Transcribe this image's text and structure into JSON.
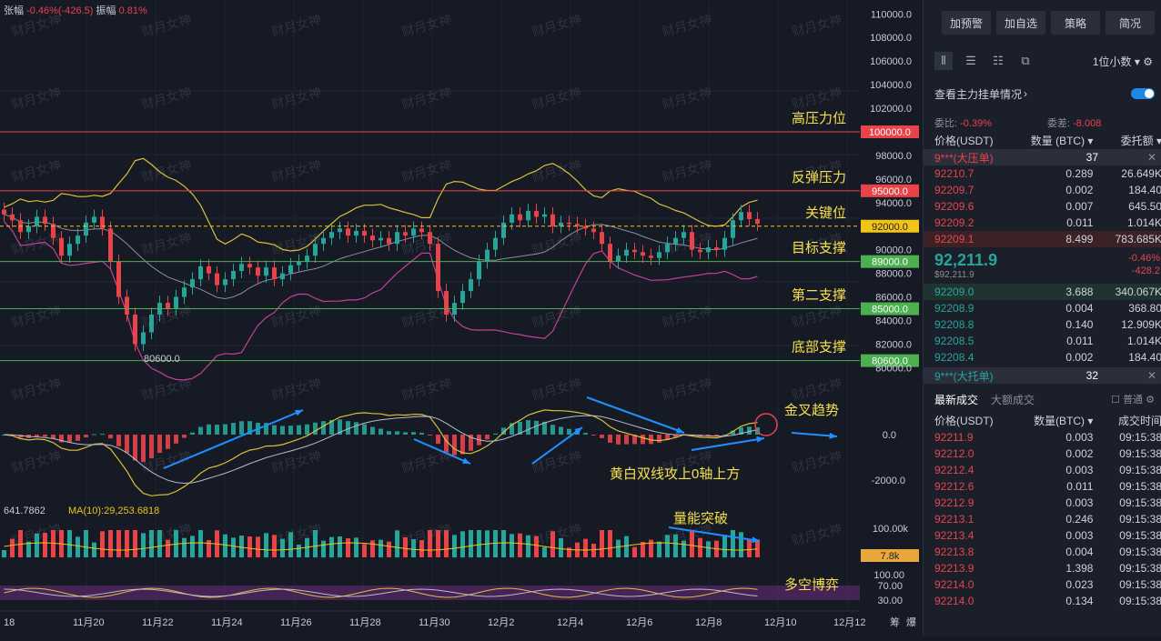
{
  "top_info": {
    "amp_label": "张幅",
    "amp_value": "-0.46%(-426.5)",
    "range_label": "振幅",
    "range_value": "0.81%"
  },
  "watermark": "财月女神",
  "chart_data": {
    "type": "candlestick",
    "price_axis_ticks": [
      "110000.0",
      "108000.0",
      "106000.0",
      "104000.0",
      "102000.0",
      "100000.0",
      "98000.0",
      "96000.0",
      "94000.0",
      "92000.0",
      "90000.0",
      "88000.0",
      "86000.0",
      "84000.0",
      "82000.0",
      "80000.0"
    ],
    "x_ticks": [
      "18",
      "11月20",
      "11月22",
      "11月24",
      "11月26",
      "11月28",
      "11月30",
      "12月2",
      "12月4",
      "12月6",
      "12月8",
      "12月10",
      "12月12"
    ],
    "levels": [
      {
        "price": 100000,
        "price_label": "100000.0",
        "name": "高压力位",
        "color": "#e9434a"
      },
      {
        "price": 95000,
        "price_label": "95000.0",
        "name": "反弹压力",
        "color": "#e9434a"
      },
      {
        "price": 92000,
        "price_label": "92000.0",
        "name": "关键位",
        "color": "#f0c419"
      },
      {
        "price": 89000,
        "price_label": "89000.0",
        "name": "目标支撑",
        "color": "#4caf50"
      },
      {
        "price": 85000,
        "price_label": "85000.0",
        "name": "第二支撑",
        "color": "#4caf50"
      },
      {
        "price": 80600,
        "price_label": "80600.0",
        "name": "底部支撑",
        "color": "#4caf50"
      }
    ],
    "low_marker": "80600.0",
    "candles_close": [
      93000,
      92500,
      91500,
      92000,
      92800,
      92200,
      91000,
      89500,
      90500,
      91200,
      92300,
      92800,
      91800,
      89000,
      86000,
      84500,
      82000,
      83000,
      84500,
      85500,
      85000,
      86000,
      86800,
      87500,
      88600,
      88000,
      87000,
      87500,
      88200,
      88800,
      88500,
      87800,
      88500,
      87500,
      88000,
      88700,
      89000,
      89500,
      90500,
      91000,
      91500,
      91800,
      91200,
      91600,
      91200,
      90800,
      91000,
      90500,
      91500,
      91200,
      91800,
      91500,
      90500,
      86500,
      84500,
      85500,
      86500,
      87500,
      89000,
      90000,
      91000,
      92300,
      93000,
      92500,
      93300,
      92800,
      93000,
      92000,
      92300,
      92200,
      92000,
      91800,
      91500,
      90500,
      89000,
      89500,
      90000,
      89800,
      89500,
      89300,
      89800,
      90500,
      91000,
      91500,
      90000,
      89800,
      90200,
      90000,
      91000,
      92500,
      93200,
      92600,
      92200
    ],
    "macd": {
      "axis_ticks": [
        "0.0",
        "-2000.0"
      ],
      "annotation": "金叉趋势",
      "note": "黄白双线攻上0轴上方"
    },
    "volume": {
      "ma_prefix": "641.7862",
      "ma10": "MA(10):29,253.6818",
      "axis_ticks": [
        "100.00k"
      ],
      "current": "7.8k",
      "annotation": "量能突破"
    },
    "osc": {
      "axis_ticks": [
        "100.00",
        "70.00",
        "30.00"
      ],
      "annotation": "多空博弈"
    },
    "bottom_right": [
      "筹",
      "爆"
    ]
  },
  "panel": {
    "buttons": [
      "加预警",
      "加自选",
      "策略",
      "简况"
    ],
    "precision": "1位小数",
    "view_orders": "查看主力挂单情况",
    "wei_bi": {
      "label": "委比:",
      "value": "-0.39%"
    },
    "wei_cha": {
      "label": "委差:",
      "value": "-8.008"
    },
    "headers": [
      "价格(USDT)",
      "数量 (BTC)",
      "委托额"
    ],
    "big_sell": {
      "label": "9***(大压单)",
      "count": "37"
    },
    "asks": [
      {
        "price": "92210.7",
        "qty": "0.289",
        "amt": "26.649K"
      },
      {
        "price": "92209.7",
        "qty": "0.002",
        "amt": "184.40"
      },
      {
        "price": "92209.6",
        "qty": "0.007",
        "amt": "645.50"
      },
      {
        "price": "92209.2",
        "qty": "0.011",
        "amt": "1.014K"
      },
      {
        "price": "92209.1",
        "qty": "8.499",
        "amt": "783.685K"
      }
    ],
    "last_price": "92,211.9",
    "last_sub": "$92,211.9",
    "last_change": "-0.46%",
    "last_change_abs": "-428.2",
    "bids": [
      {
        "price": "92209.0",
        "qty": "3.688",
        "amt": "340.067K"
      },
      {
        "price": "92208.9",
        "qty": "0.004",
        "amt": "368.80"
      },
      {
        "price": "92208.8",
        "qty": "0.140",
        "amt": "12.909K"
      },
      {
        "price": "92208.5",
        "qty": "0.011",
        "amt": "1.014K"
      },
      {
        "price": "92208.4",
        "qty": "0.002",
        "amt": "184.40"
      }
    ],
    "big_buy": {
      "label": "9***(大托单)",
      "count": "32"
    },
    "trade_tabs": [
      "最新成交",
      "大额成交"
    ],
    "normal_label": "普通",
    "trade_headers": [
      "价格(USDT)",
      "数量(BTC)",
      "成交时间"
    ],
    "trades": [
      {
        "price": "92211.9",
        "qty": "0.003",
        "time": "09:15:38"
      },
      {
        "price": "92212.0",
        "qty": "0.002",
        "time": "09:15:38"
      },
      {
        "price": "92212.4",
        "qty": "0.003",
        "time": "09:15:38"
      },
      {
        "price": "92212.6",
        "qty": "0.011",
        "time": "09:15:38"
      },
      {
        "price": "92212.9",
        "qty": "0.003",
        "time": "09:15:38"
      },
      {
        "price": "92213.1",
        "qty": "0.246",
        "time": "09:15:38"
      },
      {
        "price": "92213.4",
        "qty": "0.003",
        "time": "09:15:38"
      },
      {
        "price": "92213.8",
        "qty": "0.004",
        "time": "09:15:38"
      },
      {
        "price": "92213.9",
        "qty": "1.398",
        "time": "09:15:38"
      },
      {
        "price": "92214.0",
        "qty": "0.023",
        "time": "09:15:38"
      },
      {
        "price": "92214.0",
        "qty": "0.134",
        "time": "09:15:38"
      }
    ]
  }
}
